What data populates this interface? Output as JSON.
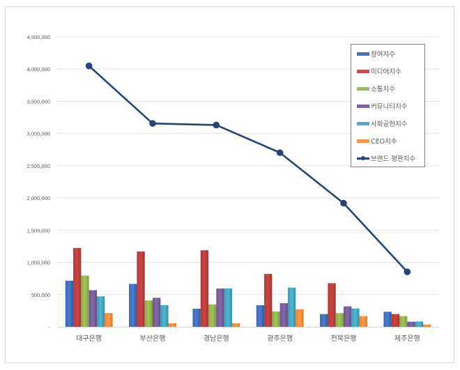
{
  "chart_data": {
    "type": "bar",
    "title": "",
    "xlabel": "",
    "ylabel": "",
    "ylim": [
      0,
      4500000
    ],
    "y_ticks": [
      0,
      500000,
      1000000,
      1500000,
      2000000,
      2500000,
      3000000,
      3500000,
      4000000,
      4500000
    ],
    "y_tick_labels": [
      "-",
      "500,000",
      "1,000,000",
      "1,500,000",
      "2,000,000",
      "2,500,000",
      "3,000,000",
      "3,500,000",
      "4,000,000",
      "4,500,000"
    ],
    "grid": true,
    "legend_position": "right-top-inside",
    "categories": [
      "대구은행",
      "부산은행",
      "경남은행",
      "광주은행",
      "전북은행",
      "제주은행"
    ],
    "series": [
      {
        "name": "참여지수",
        "type": "bar",
        "color": "#4472C4",
        "values": [
          716000,
          666000,
          281000,
          335000,
          198000,
          234000
        ]
      },
      {
        "name": "미디어지수",
        "type": "bar",
        "color": "#C0504D",
        "values": [
          1224000,
          1170000,
          1188000,
          821000,
          677000,
          198000
        ]
      },
      {
        "name": "소통지수",
        "type": "bar",
        "color": "#9BBB59",
        "values": [
          796000,
          410000,
          346000,
          238000,
          213000,
          166000
        ]
      },
      {
        "name": "커뮤니티지수",
        "type": "bar",
        "color": "#8064A2",
        "values": [
          569000,
          450000,
          594000,
          367000,
          317000,
          79000
        ]
      },
      {
        "name": "사회공헌지수",
        "type": "bar",
        "color": "#4BACC6",
        "values": [
          472000,
          335000,
          594000,
          608000,
          284000,
          83000
        ]
      },
      {
        "name": "CEO지수",
        "type": "bar",
        "color": "#F79646",
        "values": [
          213000,
          54000,
          54000,
          270000,
          166000,
          36000
        ]
      },
      {
        "name": "브랜드 평판지수",
        "type": "line",
        "color": "#264478",
        "values": [
          4050000,
          3157000,
          3132000,
          2703000,
          1919000,
          853000
        ]
      }
    ]
  },
  "legend": {
    "items": [
      {
        "label": "참여지수",
        "kind": "bar",
        "color": "#4472C4"
      },
      {
        "label": "미디어지수",
        "kind": "bar",
        "color": "#C0504D"
      },
      {
        "label": "소통지수",
        "kind": "bar",
        "color": "#9BBB59"
      },
      {
        "label": "커뮤니티지수",
        "kind": "bar",
        "color": "#8064A2"
      },
      {
        "label": "사회공헌지수",
        "kind": "bar",
        "color": "#4BACC6"
      },
      {
        "label": "CEO지수",
        "kind": "bar",
        "color": "#F79646"
      },
      {
        "label": "브랜드 평판지수",
        "kind": "line",
        "color": "#264478"
      }
    ]
  }
}
